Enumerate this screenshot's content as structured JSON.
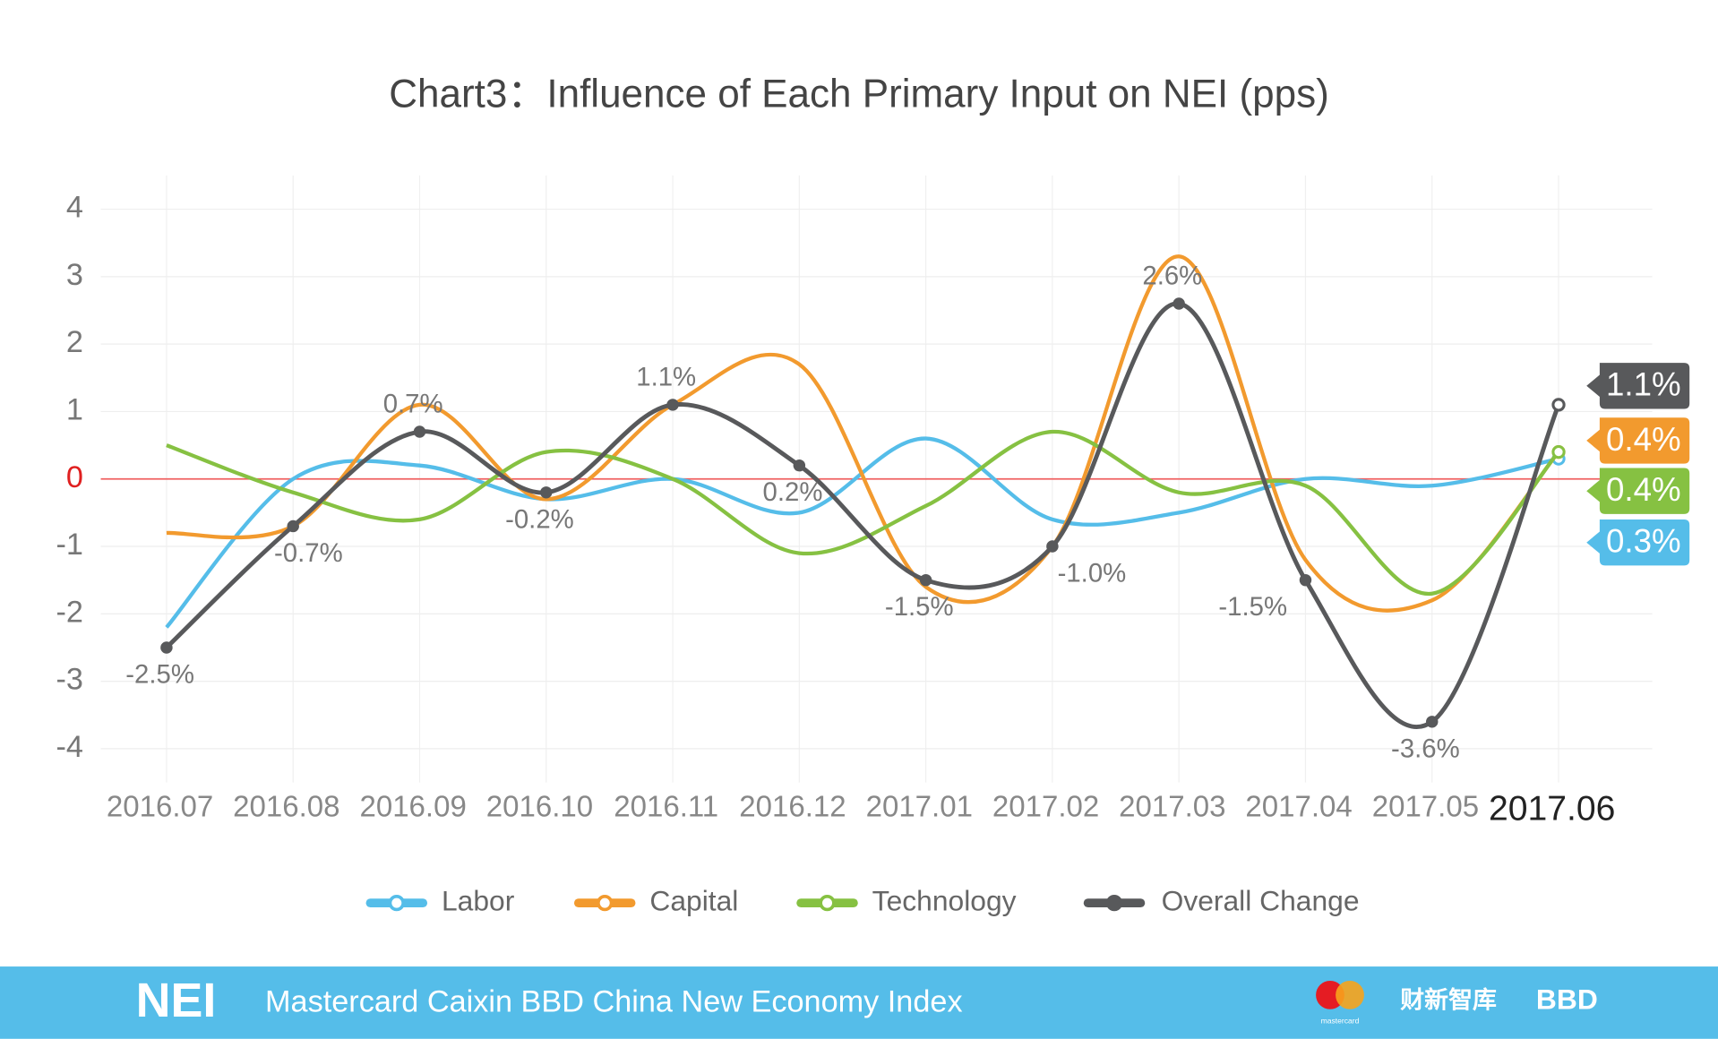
{
  "chart_data": {
    "type": "line",
    "title": "Chart3：Influence of Each Primary Input on NEI (pps)",
    "categories": [
      "2016.07",
      "2016.08",
      "2016.09",
      "2016.10",
      "2016.11",
      "2016.12",
      "2017.01",
      "2017.02",
      "2017.03",
      "2017.04",
      "2017.05",
      "2017.06"
    ],
    "ylim": [
      -4.5,
      4.5
    ],
    "yticks": [
      -4,
      -3,
      -2,
      -1,
      0,
      1,
      2,
      3,
      4
    ],
    "grid": true,
    "zero_line_color": "#f06060",
    "series": [
      {
        "name": "Labor",
        "color": "#55bde9",
        "values": [
          -2.2,
          0.0,
          0.2,
          -0.3,
          0.0,
          -0.5,
          0.6,
          -0.6,
          -0.5,
          0.0,
          -0.1,
          0.3
        ],
        "value_labels": [
          null,
          null,
          null,
          null,
          null,
          null,
          null,
          null,
          null,
          null,
          null,
          "0.3%"
        ]
      },
      {
        "name": "Capital",
        "color": "#f29a2e",
        "values": [
          -0.8,
          -0.7,
          1.1,
          -0.3,
          1.1,
          1.7,
          -1.6,
          -1.0,
          3.3,
          -1.2,
          -1.8,
          0.4
        ],
        "value_labels": [
          null,
          null,
          null,
          null,
          null,
          null,
          null,
          null,
          null,
          null,
          null,
          "0.4%"
        ]
      },
      {
        "name": "Technology",
        "color": "#86c142",
        "values": [
          0.5,
          -0.2,
          -0.6,
          0.4,
          0.0,
          -1.1,
          -0.4,
          0.7,
          -0.2,
          -0.1,
          -1.7,
          0.4
        ],
        "value_labels": [
          null,
          null,
          null,
          null,
          null,
          null,
          null,
          null,
          null,
          null,
          null,
          "0.4%"
        ]
      },
      {
        "name": "Overall Change",
        "color": "#58595b",
        "values": [
          -2.5,
          -0.7,
          0.7,
          -0.2,
          1.1,
          0.2,
          -1.5,
          -1.0,
          2.6,
          -1.5,
          -3.6,
          1.1
        ],
        "value_labels": [
          "-2.5%",
          "-0.7%",
          "0.7%",
          "-0.2%",
          "1.1%",
          "0.2%",
          "-1.5%",
          "-1.0%",
          "2.6%",
          "-1.5%",
          "-3.6%",
          "1.1%"
        ]
      }
    ]
  },
  "footer": {
    "brand": "NEI",
    "text": "Mastercard Caixin BBD China New Economy Index",
    "logos": [
      "mastercard",
      "财新智库",
      "BBD"
    ]
  }
}
